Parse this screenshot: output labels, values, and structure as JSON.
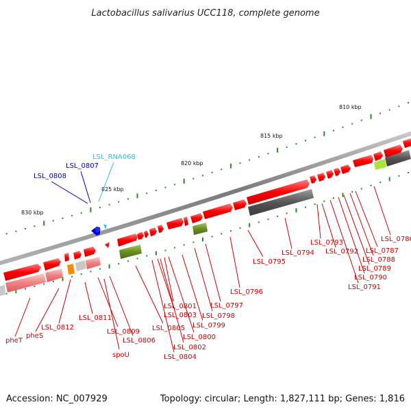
{
  "title": "Lactobacillus salivarius UCC118, complete genome",
  "accession": "Accession: NC_007929",
  "summary": "Topology: circular; Length: 1,827,111 bp; Genes: 1,816",
  "scale_labels": [
    "810 kbp",
    "815 kbp",
    "820 kbp",
    "825 kbp",
    "830 kbp"
  ],
  "colors": {
    "backbone": "#8c8c8c",
    "gene": "#ff0000",
    "gene_light": "#f08080",
    "pseudo_dark": "#555555",
    "olive": "#6b8e23",
    "orange": "#ff8c00",
    "lime": "#9acd32",
    "blue": "#0000cc",
    "cyan": "#33bbdd",
    "tick": "#228b22",
    "label_red": "#cc0000"
  },
  "gene_labels": {
    "red": [
      "pheT",
      "pheS",
      "LSL_0812",
      "LSL_0811",
      "LSL_0809",
      "spoU",
      "LSL_0806",
      "LSL_0805",
      "LSL_0804",
      "LSL_0803",
      "LSL_0802",
      "LSL_0801",
      "LSL_0800",
      "LSL_0799",
      "LSL_0798",
      "LSL_0797",
      "LSL_0796",
      "LSL_0795",
      "LSL_0794",
      "LSL_0793",
      "LSL_0792",
      "LSL_0791",
      "LSL_0790",
      "LSL_0789",
      "LSL_0788",
      "LSL_0787",
      "LSL_0786"
    ],
    "blue": [
      "LSL_0808",
      "LSL_0807"
    ],
    "cyan": [
      "LSL_RNA068"
    ]
  }
}
